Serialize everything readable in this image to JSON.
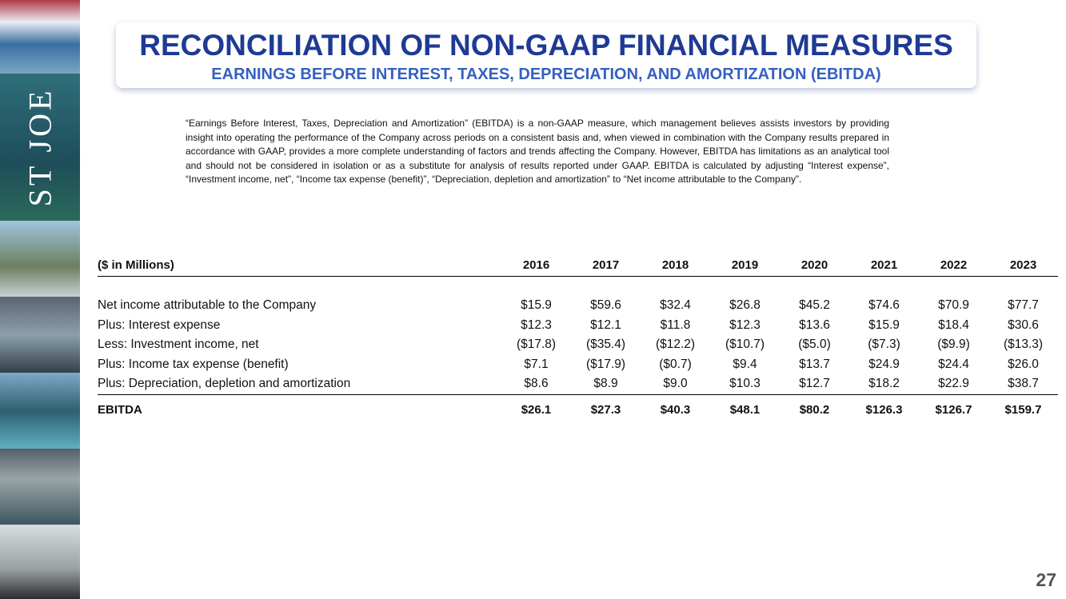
{
  "logo": "ST JOE",
  "header": {
    "title": "RECONCILIATION OF NON-GAAP FINANCIAL MEASURES",
    "subtitle": "EARNINGS BEFORE INTEREST, TAXES, DEPRECIATION, AND AMORTIZATION (EBITDA)"
  },
  "description": "“Earnings Before Interest, Taxes, Depreciation and Amortization” (EBITDA) is a non-GAAP measure, which management believes assists investors by providing insight into operating the performance of the Company across periods on a consistent basis and, when viewed in combination with the Company results prepared in accordance with GAAP, provides a more complete understanding of factors and trends affecting the Company. However, EBITDA has limitations as an analytical tool and should not be considered in isolation or as a substitute for analysis of results reported under GAAP. EBITDA is calculated by adjusting “Interest expense”, “Investment income, net”, “Income tax expense (benefit)”, “Depreciation, depletion and amortization” to “Net income attributable to the Company”.",
  "table": {
    "header": [
      "($ in Millions)",
      "2016",
      "2017",
      "2018",
      "2019",
      "2020",
      "2021",
      "2022",
      "2023"
    ],
    "rows": [
      [
        "Net income attributable to the Company",
        "$15.9",
        "$59.6",
        "$32.4",
        "$26.8",
        "$45.2",
        "$74.6",
        "$70.9",
        "$77.7"
      ],
      [
        "Plus: Interest expense",
        "$12.3",
        "$12.1",
        "$11.8",
        "$12.3",
        "$13.6",
        "$15.9",
        "$18.4",
        "$30.6"
      ],
      [
        "Less: Investment income, net",
        "($17.8)",
        "($35.4)",
        "($12.2)",
        "($10.7)",
        "($5.0)",
        "($7.3)",
        "($9.9)",
        "($13.3)"
      ],
      [
        "Plus: Income tax expense (benefit)",
        "$7.1",
        "($17.9)",
        "($0.7)",
        "$9.4",
        "$13.7",
        "$24.9",
        "$24.4",
        "$26.0"
      ],
      [
        "Plus: Depreciation, depletion and amortization",
        "$8.6",
        "$8.9",
        "$9.0",
        "$10.3",
        "$12.7",
        "$18.2",
        "$22.9",
        "$38.7"
      ]
    ],
    "total": [
      "EBITDA",
      "$26.1",
      "$27.3",
      "$40.3",
      "$48.1",
      "$80.2",
      "$126.3",
      "$126.7",
      "$159.7"
    ]
  },
  "page_number": "27"
}
